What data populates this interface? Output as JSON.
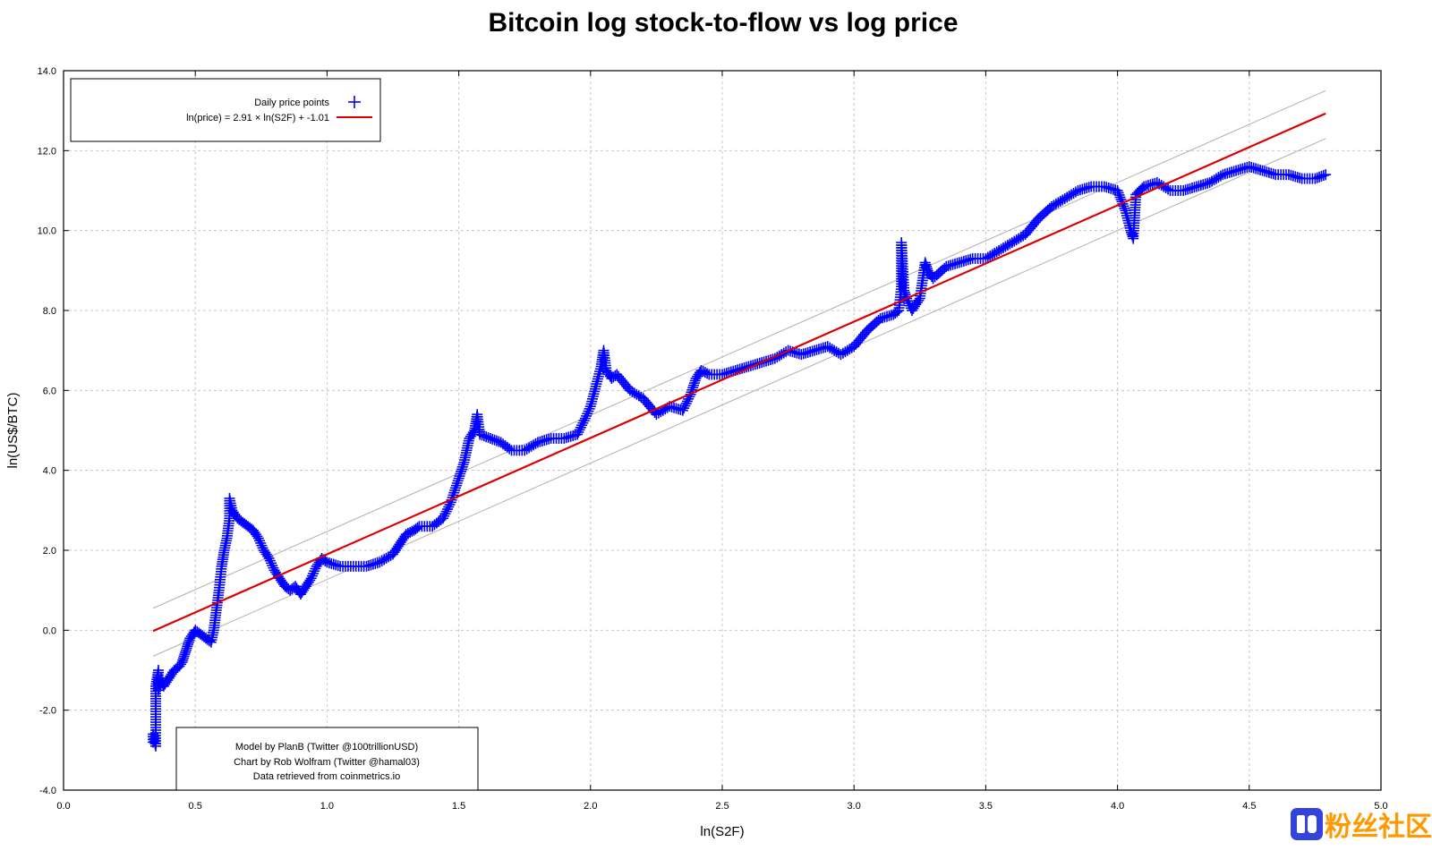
{
  "chart_data": {
    "type": "scatter",
    "title": "Bitcoin log stock-to-flow vs log price",
    "xlabel": "ln(S2F)",
    "ylabel": "ln(US$/BTC)",
    "xlim": [
      0.0,
      5.0
    ],
    "ylim": [
      -4.0,
      14.0
    ],
    "x_ticks": [
      "0.0",
      "0.5",
      "1.0",
      "1.5",
      "2.0",
      "2.5",
      "3.0",
      "3.5",
      "4.0",
      "4.5",
      "5.0"
    ],
    "y_ticks": [
      "-4.0",
      "-2.0",
      "0.0",
      "2.0",
      "4.0",
      "6.0",
      "8.0",
      "10.0",
      "12.0",
      "14.0"
    ],
    "grid": true,
    "legend_position": "top-left",
    "series": [
      {
        "name": "Daily price points",
        "kind": "scatter",
        "marker": "plus",
        "color": "#0000ff",
        "points": [
          [
            0.34,
            -2.8
          ],
          [
            0.34,
            -2.6
          ],
          [
            0.35,
            -2.9
          ],
          [
            0.35,
            -2.3
          ],
          [
            0.35,
            -1.9
          ],
          [
            0.35,
            -1.4
          ],
          [
            0.36,
            -1.0
          ],
          [
            0.36,
            -1.5
          ],
          [
            0.37,
            -1.2
          ],
          [
            0.38,
            -1.4
          ],
          [
            0.4,
            -1.2
          ],
          [
            0.42,
            -1.0
          ],
          [
            0.44,
            -0.9
          ],
          [
            0.45,
            -0.8
          ],
          [
            0.46,
            -0.6
          ],
          [
            0.47,
            -0.4
          ],
          [
            0.48,
            -0.2
          ],
          [
            0.5,
            0.0
          ],
          [
            0.52,
            -0.1
          ],
          [
            0.54,
            -0.2
          ],
          [
            0.56,
            -0.3
          ],
          [
            0.57,
            0.0
          ],
          [
            0.58,
            0.5
          ],
          [
            0.59,
            1.0
          ],
          [
            0.6,
            1.6
          ],
          [
            0.61,
            2.0
          ],
          [
            0.62,
            2.3
          ],
          [
            0.63,
            2.8
          ],
          [
            0.63,
            3.3
          ],
          [
            0.64,
            3.0
          ],
          [
            0.66,
            2.8
          ],
          [
            0.68,
            2.7
          ],
          [
            0.7,
            2.6
          ],
          [
            0.72,
            2.5
          ],
          [
            0.74,
            2.3
          ],
          [
            0.76,
            2.0
          ],
          [
            0.78,
            1.8
          ],
          [
            0.8,
            1.5
          ],
          [
            0.82,
            1.3
          ],
          [
            0.84,
            1.1
          ],
          [
            0.86,
            1.0
          ],
          [
            0.88,
            1.1
          ],
          [
            0.9,
            0.9
          ],
          [
            0.92,
            1.1
          ],
          [
            0.94,
            1.3
          ],
          [
            0.96,
            1.6
          ],
          [
            0.98,
            1.8
          ],
          [
            1.0,
            1.7
          ],
          [
            1.05,
            1.6
          ],
          [
            1.1,
            1.6
          ],
          [
            1.15,
            1.6
          ],
          [
            1.2,
            1.7
          ],
          [
            1.25,
            1.9
          ],
          [
            1.28,
            2.2
          ],
          [
            1.3,
            2.4
          ],
          [
            1.33,
            2.5
          ],
          [
            1.35,
            2.6
          ],
          [
            1.4,
            2.6
          ],
          [
            1.44,
            2.8
          ],
          [
            1.47,
            3.2
          ],
          [
            1.5,
            3.8
          ],
          [
            1.52,
            4.2
          ],
          [
            1.54,
            4.8
          ],
          [
            1.56,
            5.0
          ],
          [
            1.57,
            5.4
          ],
          [
            1.58,
            4.9
          ],
          [
            1.62,
            4.8
          ],
          [
            1.66,
            4.7
          ],
          [
            1.7,
            4.5
          ],
          [
            1.75,
            4.5
          ],
          [
            1.8,
            4.7
          ],
          [
            1.85,
            4.8
          ],
          [
            1.9,
            4.8
          ],
          [
            1.95,
            4.9
          ],
          [
            1.98,
            5.3
          ],
          [
            2.0,
            5.6
          ],
          [
            2.02,
            6.1
          ],
          [
            2.04,
            6.6
          ],
          [
            2.05,
            7.0
          ],
          [
            2.06,
            6.5
          ],
          [
            2.08,
            6.3
          ],
          [
            2.1,
            6.4
          ],
          [
            2.15,
            6.0
          ],
          [
            2.2,
            5.8
          ],
          [
            2.25,
            5.4
          ],
          [
            2.3,
            5.6
          ],
          [
            2.35,
            5.5
          ],
          [
            2.38,
            5.9
          ],
          [
            2.4,
            6.3
          ],
          [
            2.42,
            6.5
          ],
          [
            2.45,
            6.4
          ],
          [
            2.5,
            6.4
          ],
          [
            2.55,
            6.5
          ],
          [
            2.6,
            6.6
          ],
          [
            2.65,
            6.7
          ],
          [
            2.7,
            6.8
          ],
          [
            2.75,
            7.0
          ],
          [
            2.8,
            6.9
          ],
          [
            2.85,
            7.0
          ],
          [
            2.9,
            7.1
          ],
          [
            2.95,
            6.9
          ],
          [
            3.0,
            7.1
          ],
          [
            3.05,
            7.5
          ],
          [
            3.1,
            7.8
          ],
          [
            3.15,
            7.9
          ],
          [
            3.17,
            8.0
          ],
          [
            3.18,
            8.6
          ],
          [
            3.18,
            9.7
          ],
          [
            3.19,
            8.5
          ],
          [
            3.2,
            8.3
          ],
          [
            3.22,
            8.0
          ],
          [
            3.25,
            8.3
          ],
          [
            3.27,
            9.2
          ],
          [
            3.28,
            9.0
          ],
          [
            3.3,
            8.8
          ],
          [
            3.35,
            9.1
          ],
          [
            3.4,
            9.2
          ],
          [
            3.45,
            9.3
          ],
          [
            3.5,
            9.3
          ],
          [
            3.55,
            9.5
          ],
          [
            3.6,
            9.7
          ],
          [
            3.65,
            9.9
          ],
          [
            3.7,
            10.3
          ],
          [
            3.75,
            10.6
          ],
          [
            3.8,
            10.8
          ],
          [
            3.85,
            11.0
          ],
          [
            3.9,
            11.1
          ],
          [
            3.95,
            11.1
          ],
          [
            4.0,
            11.0
          ],
          [
            4.03,
            10.5
          ],
          [
            4.05,
            10.0
          ],
          [
            4.06,
            9.8
          ],
          [
            4.07,
            10.9
          ],
          [
            4.1,
            11.1
          ],
          [
            4.15,
            11.2
          ],
          [
            4.2,
            11.0
          ],
          [
            4.25,
            11.0
          ],
          [
            4.3,
            11.1
          ],
          [
            4.35,
            11.2
          ],
          [
            4.4,
            11.4
          ],
          [
            4.45,
            11.5
          ],
          [
            4.5,
            11.6
          ],
          [
            4.55,
            11.5
          ],
          [
            4.6,
            11.4
          ],
          [
            4.65,
            11.4
          ],
          [
            4.7,
            11.3
          ],
          [
            4.75,
            11.3
          ],
          [
            4.79,
            11.4
          ]
        ]
      },
      {
        "name": "ln(price) = 2.91 × ln(S2F) + -1.01",
        "kind": "line",
        "color": "#dd0000",
        "x": [
          0.34,
          4.79
        ],
        "y": [
          -0.02,
          12.93
        ]
      },
      {
        "kind": "line",
        "color": "#b0b0b0",
        "x": [
          0.34,
          4.79
        ],
        "y": [
          0.55,
          13.5
        ]
      },
      {
        "kind": "line",
        "color": "#b0b0b0",
        "x": [
          0.34,
          4.79
        ],
        "y": [
          -0.65,
          12.3
        ]
      }
    ],
    "annotations": [
      "Model by PlanB (Twitter @100trillionUSD)",
      "Chart by Rob Wolfram (Twitter @hamal03)",
      "Data retrieved from coinmetrics.io"
    ]
  },
  "watermark": {
    "text": "粉丝社区",
    "icon": "watermark-logo-icon",
    "text_color": "#ff9900",
    "icon_color": "#3344dd"
  }
}
